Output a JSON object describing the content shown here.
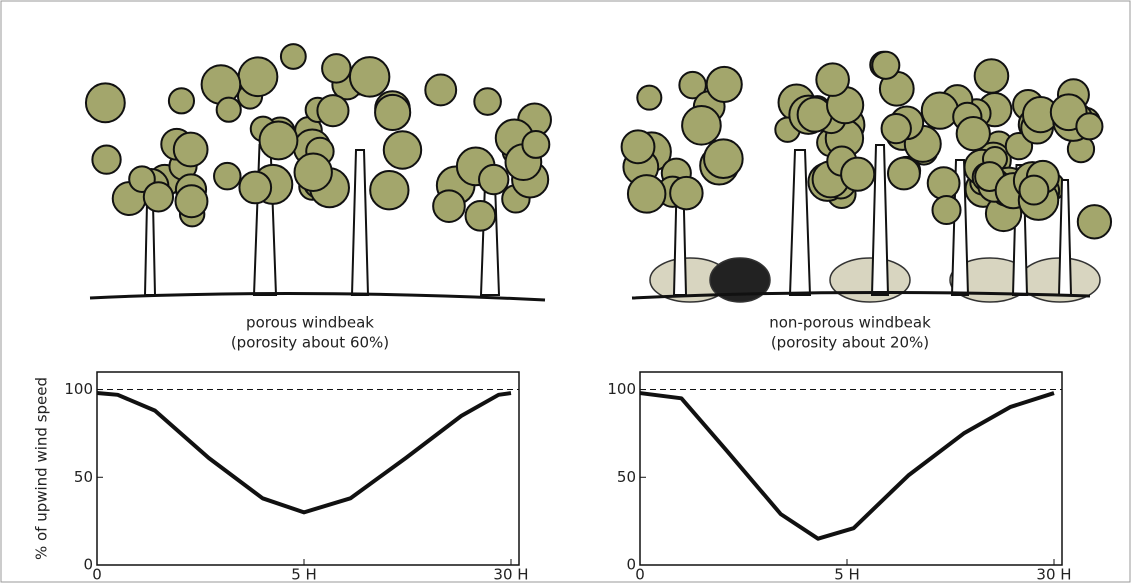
{
  "chart_data": [
    {
      "type": "line",
      "title": "porous windbeak",
      "subtitle": "(porosity about 60%)",
      "ylabel": "% of upwind wind speed",
      "x": [
        0,
        0.5,
        1.4,
        2.7,
        4.0,
        5,
        10.6,
        17.3,
        24,
        28.5,
        30
      ],
      "series": [
        {
          "color": "#111111",
          "values": [
            98,
            97,
            88,
            61,
            38,
            30,
            38,
            61,
            85,
            97,
            98
          ]
        }
      ],
      "xlim": [
        0,
        30
      ],
      "xticks": [
        0,
        {
          "value": 5,
          "label": "5 H"
        },
        {
          "value": 30,
          "label": "30 H"
        }
      ],
      "ylim": [
        0,
        110
      ],
      "yticks": [
        0,
        50,
        100
      ]
    },
    {
      "type": "line",
      "title": "non-porous windbeak",
      "subtitle": "(porosity about 20%)",
      "x": [
        0,
        1.0,
        2.1,
        3.4,
        4.3,
        5.8,
        12.4,
        19.1,
        24.7,
        30
      ],
      "series": [
        {
          "color": "#111111",
          "values": [
            98,
            95,
            65,
            29,
            15,
            21,
            51,
            75,
            90,
            98
          ]
        }
      ],
      "xlim": [
        0,
        30
      ],
      "xticks": [
        0,
        {
          "value": 5,
          "label": "5 H"
        },
        {
          "value": 30,
          "label": "30 H"
        }
      ],
      "ylim": [
        0,
        110
      ],
      "yticks": [
        0,
        50,
        100
      ]
    }
  ]
}
